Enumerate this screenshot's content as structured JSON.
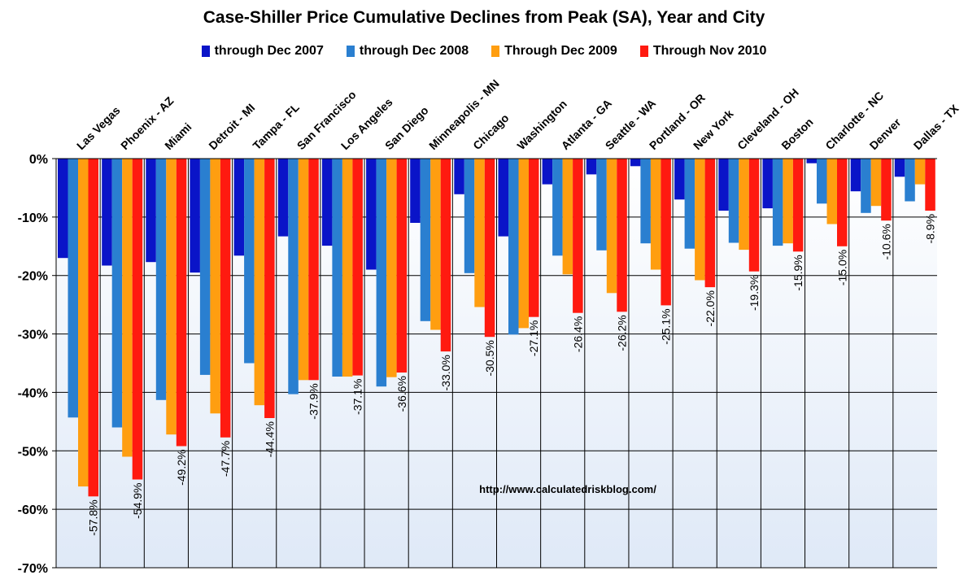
{
  "chart_data": {
    "type": "bar",
    "title": "Case-Shiller Price Cumulative Declines from Peak (SA),  Year and City",
    "categories": [
      "Las Vegas",
      "Phoenix - AZ",
      "Miami",
      "Detroit - MI",
      "Tampa - FL",
      "San Francisco",
      "Los Angeles",
      "San Diego",
      "Minneapolis - MN",
      "Chicago",
      "Washington",
      "Atlanta - GA",
      "Seattle - WA",
      "Portland - OR",
      "New York",
      "Cleveland - OH",
      "Boston",
      "Charlotte - NC",
      "Denver",
      "Dallas - TX"
    ],
    "series": [
      {
        "name": "through Dec 2007",
        "color": "#0a14c8",
        "values": [
          -17.0,
          -18.3,
          -17.7,
          -19.5,
          -16.6,
          -13.3,
          -14.9,
          -19.0,
          -11.0,
          -6.1,
          -13.3,
          -4.4,
          -2.7,
          -1.3,
          -7.0,
          -8.9,
          -8.5,
          -0.8,
          -5.6,
          -3.1
        ]
      },
      {
        "name": "through Dec 2008",
        "color": "#2a7fd0",
        "values": [
          -44.3,
          -46.0,
          -41.3,
          -37.0,
          -35.0,
          -40.3,
          -37.3,
          -39.0,
          -27.8,
          -19.6,
          -30.1,
          -16.6,
          -15.7,
          -14.5,
          -15.4,
          -14.4,
          -14.9,
          -7.7,
          -9.3,
          -7.3
        ]
      },
      {
        "name": "Through Dec 2009",
        "color": "#ff9e10",
        "values": [
          -56.1,
          -51.0,
          -47.2,
          -43.6,
          -42.2,
          -37.9,
          -37.3,
          -37.4,
          -29.3,
          -25.4,
          -29.0,
          -19.8,
          -23.0,
          -19.0,
          -20.8,
          -15.6,
          -14.5,
          -11.2,
          -8.1,
          -4.4
        ]
      },
      {
        "name": "Through Nov 2010",
        "color": "#ff1a10",
        "values": [
          -57.8,
          -54.9,
          -49.2,
          -47.7,
          -44.4,
          -37.9,
          -37.1,
          -36.6,
          -33.0,
          -30.5,
          -27.1,
          -26.4,
          -26.2,
          -25.1,
          -22.0,
          -19.3,
          -15.9,
          -15.0,
          -10.6,
          -8.9
        ]
      }
    ],
    "data_labels": [
      "-57.8%",
      "-54.9%",
      "-49.2%",
      "-47.7%",
      "-44.4%",
      "-37.9%",
      "-37.1%",
      "-36.6%",
      "-33.0%",
      "-30.5%",
      "-27.1%",
      "-26.4%",
      "-26.2%",
      "-25.1%",
      "-22.0%",
      "-19.3%",
      "-15.9%",
      "-15.0%",
      "-10.6%",
      "-8.9%"
    ],
    "y_ticks": [
      0,
      -10,
      -20,
      -30,
      -40,
      -50,
      -60,
      -70
    ],
    "y_tick_labels": [
      "0%",
      "-10%",
      "-20%",
      "-30%",
      "-40%",
      "-50%",
      "-60%",
      "-70%"
    ],
    "ylim": [
      -70,
      0
    ],
    "grid": true,
    "legend_position": "top",
    "annotation": "http://www.calculatedriskblog.com/"
  }
}
